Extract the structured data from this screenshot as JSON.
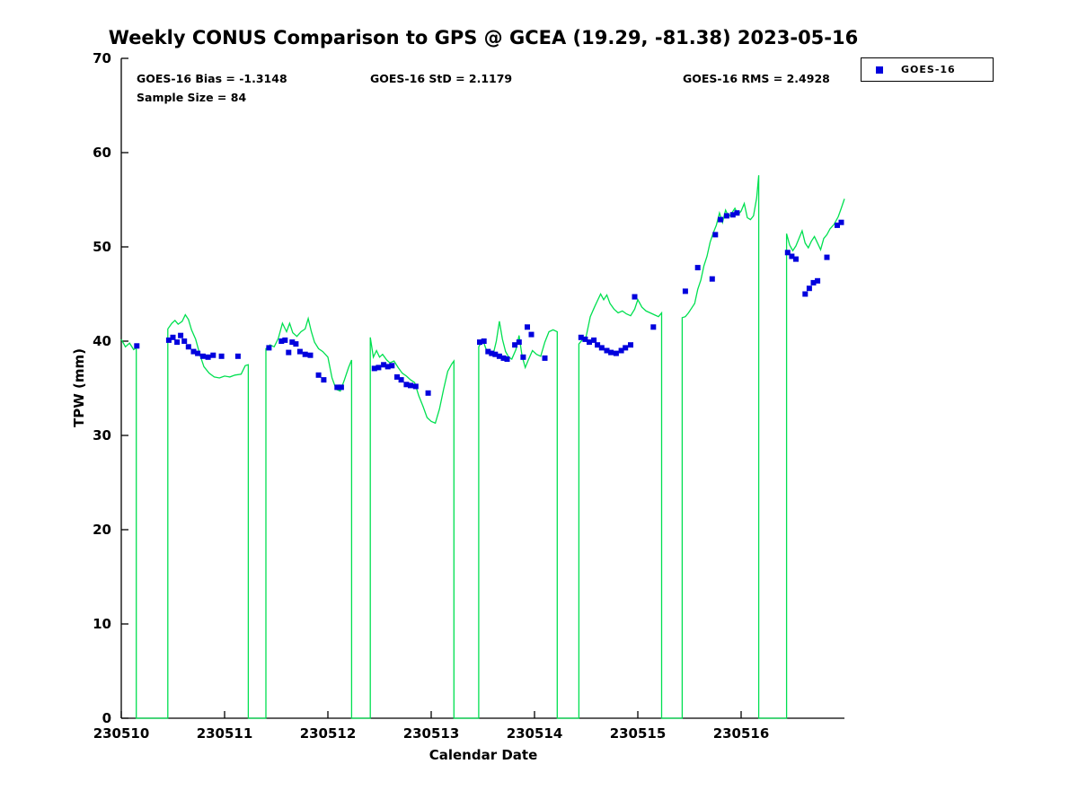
{
  "chart_data": {
    "type": "line",
    "title": "Weekly CONUS Comparison to GPS @ GCEA (19.29, -81.38) 2023-05-16",
    "xlabel": "Calendar Date",
    "ylabel": "TPW (mm)",
    "ylim": [
      0,
      70
    ],
    "yticks": [
      0,
      10,
      20,
      30,
      40,
      50,
      60,
      70
    ],
    "xlim_days": [
      0,
      7
    ],
    "x_unit": "days since 230510",
    "xticks": [
      {
        "day": 0,
        "label": "230510"
      },
      {
        "day": 1,
        "label": "230511"
      },
      {
        "day": 2,
        "label": "230512"
      },
      {
        "day": 3,
        "label": "230513"
      },
      {
        "day": 4,
        "label": "230514"
      },
      {
        "day": 5,
        "label": "230515"
      },
      {
        "day": 6,
        "label": "230516"
      }
    ],
    "grid": false,
    "legend": {
      "label": "GOES-16",
      "position": "top-right-outside"
    },
    "annotations": {
      "bias": "GOES-16 Bias = -1.3148",
      "std": "GOES-16 StD = 2.1179",
      "rms": "GOES-16 RMS = 2.4928",
      "sample": "Sample Size = 84"
    },
    "colors": {
      "gps_line": "#00E050",
      "goes16": "#0000DD",
      "axis": "#000000"
    },
    "series": [
      {
        "name": "GPS",
        "type": "line",
        "color_key": "gps_line",
        "drops_to_zero_between_segments": true,
        "segments": [
          [
            [
              0.0,
              40.2
            ],
            [
              0.04,
              39.4
            ],
            [
              0.08,
              39.8
            ],
            [
              0.12,
              39.1
            ],
            [
              0.145,
              39.3
            ]
          ],
          [
            [
              0.45,
              41.3
            ],
            [
              0.49,
              41.9
            ],
            [
              0.52,
              42.2
            ],
            [
              0.55,
              41.8
            ],
            [
              0.59,
              42.1
            ],
            [
              0.62,
              42.8
            ],
            [
              0.65,
              42.3
            ],
            [
              0.68,
              41.2
            ],
            [
              0.72,
              40.2
            ],
            [
              0.76,
              38.6
            ],
            [
              0.8,
              37.3
            ],
            [
              0.85,
              36.6
            ],
            [
              0.9,
              36.2
            ],
            [
              0.95,
              36.1
            ],
            [
              1.0,
              36.3
            ],
            [
              1.05,
              36.2
            ],
            [
              1.1,
              36.4
            ],
            [
              1.16,
              36.5
            ],
            [
              1.2,
              37.4
            ],
            [
              1.23,
              37.5
            ]
          ],
          [
            [
              1.4,
              39.2
            ],
            [
              1.44,
              39.6
            ],
            [
              1.48,
              39.4
            ],
            [
              1.52,
              40.3
            ],
            [
              1.56,
              41.9
            ],
            [
              1.6,
              41.0
            ],
            [
              1.63,
              41.9
            ],
            [
              1.66,
              40.9
            ],
            [
              1.7,
              40.5
            ],
            [
              1.74,
              41.0
            ],
            [
              1.78,
              41.3
            ],
            [
              1.81,
              42.4
            ],
            [
              1.84,
              41.0
            ],
            [
              1.87,
              39.9
            ],
            [
              1.91,
              39.2
            ],
            [
              1.95,
              38.9
            ],
            [
              2.0,
              38.3
            ],
            [
              2.04,
              36.1
            ],
            [
              2.08,
              34.9
            ],
            [
              2.12,
              34.7
            ],
            [
              2.16,
              35.9
            ],
            [
              2.2,
              37.2
            ],
            [
              2.23,
              38.0
            ]
          ],
          [
            [
              2.41,
              40.4
            ],
            [
              2.44,
              38.3
            ],
            [
              2.47,
              39.0
            ],
            [
              2.5,
              38.3
            ],
            [
              2.53,
              38.6
            ],
            [
              2.57,
              38.0
            ],
            [
              2.6,
              37.7
            ],
            [
              2.64,
              37.9
            ],
            [
              2.68,
              37.2
            ],
            [
              2.72,
              36.6
            ],
            [
              2.76,
              36.3
            ],
            [
              2.8,
              35.9
            ],
            [
              2.84,
              35.6
            ],
            [
              2.88,
              34.2
            ],
            [
              2.92,
              33.1
            ],
            [
              2.96,
              31.9
            ],
            [
              3.0,
              31.5
            ],
            [
              3.04,
              31.3
            ],
            [
              3.08,
              32.8
            ],
            [
              3.12,
              34.9
            ],
            [
              3.16,
              36.8
            ],
            [
              3.2,
              37.6
            ],
            [
              3.22,
              37.9
            ]
          ],
          [
            [
              3.46,
              39.4
            ],
            [
              3.5,
              40.1
            ],
            [
              3.53,
              39.2
            ],
            [
              3.56,
              38.7
            ],
            [
              3.6,
              38.6
            ],
            [
              3.63,
              40.0
            ],
            [
              3.66,
              42.1
            ],
            [
              3.69,
              40.2
            ],
            [
              3.72,
              38.9
            ],
            [
              3.75,
              38.3
            ],
            [
              3.78,
              38.1
            ],
            [
              3.82,
              39.1
            ],
            [
              3.85,
              40.6
            ],
            [
              3.88,
              38.4
            ],
            [
              3.91,
              37.2
            ],
            [
              3.94,
              38.0
            ],
            [
              3.98,
              39.0
            ],
            [
              4.02,
              38.6
            ],
            [
              4.06,
              38.4
            ],
            [
              4.1,
              39.9
            ],
            [
              4.14,
              41.0
            ],
            [
              4.18,
              41.2
            ],
            [
              4.22,
              41.0
            ]
          ],
          [
            [
              4.43,
              39.7
            ],
            [
              4.46,
              40.1
            ],
            [
              4.5,
              40.5
            ],
            [
              4.54,
              42.6
            ],
            [
              4.58,
              43.6
            ],
            [
              4.61,
              44.3
            ],
            [
              4.64,
              45.0
            ],
            [
              4.67,
              44.4
            ],
            [
              4.7,
              44.9
            ],
            [
              4.73,
              44.0
            ],
            [
              4.77,
              43.4
            ],
            [
              4.81,
              43.0
            ],
            [
              4.85,
              43.2
            ],
            [
              4.89,
              42.9
            ],
            [
              4.93,
              42.7
            ],
            [
              4.97,
              43.4
            ],
            [
              5.0,
              44.4
            ],
            [
              5.04,
              43.6
            ],
            [
              5.08,
              43.2
            ],
            [
              5.12,
              43.0
            ],
            [
              5.16,
              42.8
            ],
            [
              5.2,
              42.6
            ],
            [
              5.23,
              43.0
            ]
          ],
          [
            [
              5.43,
              42.5
            ],
            [
              5.46,
              42.6
            ],
            [
              5.49,
              43.0
            ],
            [
              5.52,
              43.5
            ],
            [
              5.55,
              44.0
            ],
            [
              5.58,
              45.5
            ],
            [
              5.61,
              46.5
            ],
            [
              5.64,
              48.0
            ],
            [
              5.67,
              49.0
            ],
            [
              5.7,
              50.5
            ],
            [
              5.73,
              51.5
            ],
            [
              5.76,
              52.3
            ],
            [
              5.79,
              53.6
            ],
            [
              5.82,
              52.6
            ],
            [
              5.85,
              53.9
            ],
            [
              5.88,
              53.2
            ],
            [
              5.91,
              53.6
            ],
            [
              5.94,
              54.1
            ],
            [
              5.97,
              53.4
            ],
            [
              6.0,
              53.8
            ],
            [
              6.03,
              54.6
            ],
            [
              6.06,
              53.1
            ],
            [
              6.09,
              52.9
            ],
            [
              6.12,
              53.3
            ],
            [
              6.15,
              55.2
            ],
            [
              6.17,
              57.6
            ]
          ],
          [
            [
              6.44,
              51.4
            ],
            [
              6.47,
              50.2
            ],
            [
              6.5,
              49.6
            ],
            [
              6.53,
              50.1
            ],
            [
              6.56,
              50.9
            ],
            [
              6.59,
              51.7
            ],
            [
              6.62,
              50.4
            ],
            [
              6.65,
              49.9
            ],
            [
              6.68,
              50.6
            ],
            [
              6.71,
              51.1
            ],
            [
              6.74,
              50.4
            ],
            [
              6.77,
              49.7
            ],
            [
              6.8,
              50.9
            ],
            [
              6.83,
              51.3
            ],
            [
              6.86,
              51.9
            ],
            [
              6.9,
              52.4
            ],
            [
              6.94,
              53.2
            ],
            [
              6.97,
              54.1
            ],
            [
              7.0,
              55.1
            ]
          ]
        ]
      },
      {
        "name": "GOES-16",
        "type": "scatter",
        "marker": "square",
        "color_key": "goes16",
        "points": [
          [
            0.15,
            39.5
          ],
          [
            0.46,
            40.1
          ],
          [
            0.5,
            40.4
          ],
          [
            0.54,
            39.9
          ],
          [
            0.575,
            40.6
          ],
          [
            0.61,
            40.0
          ],
          [
            0.65,
            39.4
          ],
          [
            0.7,
            38.9
          ],
          [
            0.74,
            38.7
          ],
          [
            0.79,
            38.4
          ],
          [
            0.84,
            38.3
          ],
          [
            0.89,
            38.5
          ],
          [
            0.97,
            38.4
          ],
          [
            1.13,
            38.4
          ],
          [
            1.43,
            39.3
          ],
          [
            1.55,
            40.0
          ],
          [
            1.585,
            40.1
          ],
          [
            1.62,
            38.8
          ],
          [
            1.655,
            39.9
          ],
          [
            1.69,
            39.7
          ],
          [
            1.73,
            38.9
          ],
          [
            1.78,
            38.6
          ],
          [
            1.83,
            38.5
          ],
          [
            1.91,
            36.4
          ],
          [
            1.96,
            35.9
          ],
          [
            2.09,
            35.1
          ],
          [
            2.13,
            35.1
          ],
          [
            2.45,
            37.1
          ],
          [
            2.49,
            37.2
          ],
          [
            2.54,
            37.5
          ],
          [
            2.58,
            37.3
          ],
          [
            2.62,
            37.4
          ],
          [
            2.67,
            36.2
          ],
          [
            2.71,
            35.9
          ],
          [
            2.76,
            35.4
          ],
          [
            2.8,
            35.3
          ],
          [
            2.85,
            35.2
          ],
          [
            2.97,
            34.5
          ],
          [
            3.47,
            39.9
          ],
          [
            3.51,
            40.0
          ],
          [
            3.55,
            38.9
          ],
          [
            3.585,
            38.7
          ],
          [
            3.62,
            38.6
          ],
          [
            3.66,
            38.4
          ],
          [
            3.7,
            38.2
          ],
          [
            3.735,
            38.1
          ],
          [
            3.81,
            39.6
          ],
          [
            3.85,
            39.9
          ],
          [
            3.89,
            38.3
          ],
          [
            3.93,
            41.5
          ],
          [
            3.97,
            40.7
          ],
          [
            4.1,
            38.2
          ],
          [
            4.45,
            40.4
          ],
          [
            4.49,
            40.2
          ],
          [
            4.53,
            39.9
          ],
          [
            4.575,
            40.1
          ],
          [
            4.61,
            39.6
          ],
          [
            4.65,
            39.3
          ],
          [
            4.7,
            39.0
          ],
          [
            4.74,
            38.8
          ],
          [
            4.79,
            38.7
          ],
          [
            4.84,
            39.0
          ],
          [
            4.88,
            39.3
          ],
          [
            4.93,
            39.6
          ],
          [
            4.97,
            44.7
          ],
          [
            5.15,
            41.5
          ],
          [
            5.46,
            45.3
          ],
          [
            5.58,
            47.8
          ],
          [
            5.72,
            46.6
          ],
          [
            5.75,
            51.3
          ],
          [
            5.8,
            52.9
          ],
          [
            5.86,
            53.3
          ],
          [
            5.92,
            53.4
          ],
          [
            5.96,
            53.6
          ],
          [
            6.45,
            49.4
          ],
          [
            6.49,
            49.0
          ],
          [
            6.53,
            48.7
          ],
          [
            6.62,
            45.0
          ],
          [
            6.66,
            45.6
          ],
          [
            6.7,
            46.2
          ],
          [
            6.74,
            46.4
          ],
          [
            6.83,
            48.9
          ],
          [
            6.93,
            52.3
          ],
          [
            6.97,
            52.6
          ]
        ]
      }
    ]
  }
}
